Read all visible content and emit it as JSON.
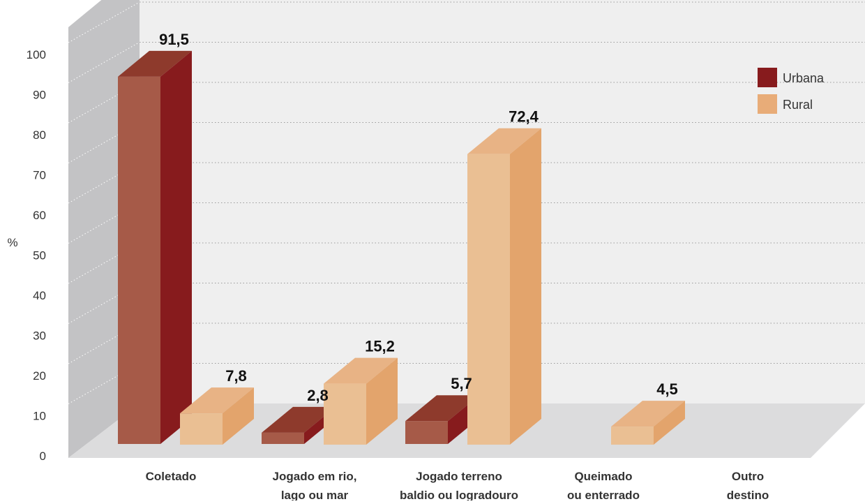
{
  "chart_data": {
    "type": "bar",
    "title": "",
    "xlabel": "",
    "ylabel": "%",
    "ylim": [
      0,
      100
    ],
    "yticks": [
      "0",
      "10",
      "20",
      "30",
      "40",
      "50",
      "60",
      "70",
      "80",
      "90",
      "100"
    ],
    "grid": true,
    "style": "3d",
    "legend_position": "top-right",
    "categories": [
      [
        "Coletado"
      ],
      [
        "Jogado em rio,",
        "lago ou mar"
      ],
      [
        "Jogado terreno",
        "baldio ou logradouro"
      ],
      [
        "Queimado",
        "ou enterrado"
      ],
      [
        "Outro",
        "destino"
      ]
    ],
    "series": [
      {
        "name": "Urbana",
        "values": [
          91.5,
          2.8,
          5.7,
          null,
          null
        ],
        "labels": [
          "91,5",
          "2,8",
          "5,7",
          "",
          ""
        ],
        "colors": {
          "front": "#a65a48",
          "side": "#871b1d",
          "top": "#8e3a2c"
        }
      },
      {
        "name": "Rural",
        "values": [
          7.8,
          15.2,
          72.4,
          4.5,
          null
        ],
        "labels": [
          "7,8",
          "15,2",
          "72,4",
          "4,5",
          ""
        ],
        "colors": {
          "front": "#eabf93",
          "side": "#e3a46c",
          "top": "#e8b385"
        }
      }
    ]
  }
}
